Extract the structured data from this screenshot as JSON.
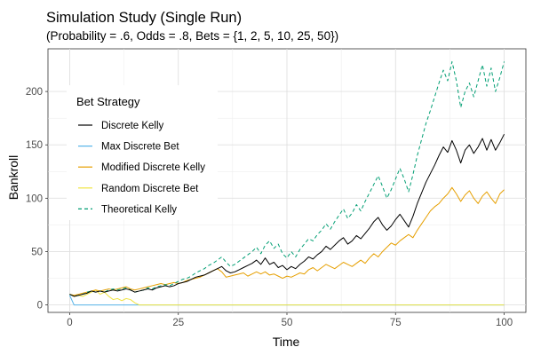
{
  "chart_data": {
    "type": "line",
    "title": "Simulation Study (Single Run)",
    "subtitle": "(Probability = .6, Odds = .8, Bets = {1, 2, 5, 10, 25, 50})",
    "xlabel": "Time",
    "ylabel": "Bankroll",
    "xlim": [
      -5,
      105
    ],
    "ylim": [
      -7,
      240
    ],
    "x_ticks": [
      0,
      25,
      50,
      75,
      100
    ],
    "y_ticks": [
      0,
      50,
      100,
      150,
      200
    ],
    "grid": true,
    "legend": {
      "title": "Bet Strategy",
      "position": "inside-top-left"
    },
    "series": [
      {
        "name": "Discrete Kelly",
        "color": "#000000",
        "dash": "solid",
        "points": [
          [
            0,
            10
          ],
          [
            1,
            8
          ],
          [
            2,
            9
          ],
          [
            3,
            10
          ],
          [
            4,
            11
          ],
          [
            5,
            13
          ],
          [
            6,
            12
          ],
          [
            7,
            13
          ],
          [
            8,
            12
          ],
          [
            9,
            13
          ],
          [
            10,
            14
          ],
          [
            11,
            13
          ],
          [
            12,
            14
          ],
          [
            13,
            15
          ],
          [
            14,
            14
          ],
          [
            15,
            12
          ],
          [
            16,
            13
          ],
          [
            17,
            14
          ],
          [
            18,
            15
          ],
          [
            19,
            14
          ],
          [
            20,
            16
          ],
          [
            21,
            17
          ],
          [
            22,
            18
          ],
          [
            23,
            17
          ],
          [
            24,
            18
          ],
          [
            25,
            20
          ],
          [
            26,
            21
          ],
          [
            27,
            22
          ],
          [
            28,
            24
          ],
          [
            29,
            26
          ],
          [
            30,
            27
          ],
          [
            31,
            28
          ],
          [
            32,
            30
          ],
          [
            33,
            32
          ],
          [
            34,
            34
          ],
          [
            35,
            36
          ],
          [
            36,
            32
          ],
          [
            37,
            30
          ],
          [
            38,
            31
          ],
          [
            39,
            33
          ],
          [
            40,
            35
          ],
          [
            41,
            37
          ],
          [
            42,
            39
          ],
          [
            43,
            42
          ],
          [
            44,
            38
          ],
          [
            45,
            44
          ],
          [
            46,
            38
          ],
          [
            47,
            40
          ],
          [
            48,
            35
          ],
          [
            49,
            37
          ],
          [
            50,
            33
          ],
          [
            51,
            36
          ],
          [
            52,
            34
          ],
          [
            53,
            38
          ],
          [
            54,
            41
          ],
          [
            55,
            45
          ],
          [
            56,
            43
          ],
          [
            57,
            47
          ],
          [
            58,
            50
          ],
          [
            59,
            55
          ],
          [
            60,
            52
          ],
          [
            61,
            56
          ],
          [
            62,
            60
          ],
          [
            63,
            63
          ],
          [
            64,
            57
          ],
          [
            65,
            60
          ],
          [
            66,
            65
          ],
          [
            67,
            62
          ],
          [
            68,
            67
          ],
          [
            69,
            72
          ],
          [
            70,
            78
          ],
          [
            71,
            82
          ],
          [
            72,
            75
          ],
          [
            73,
            70
          ],
          [
            74,
            74
          ],
          [
            75,
            80
          ],
          [
            76,
            85
          ],
          [
            77,
            79
          ],
          [
            78,
            73
          ],
          [
            79,
            83
          ],
          [
            80,
            95
          ],
          [
            81,
            105
          ],
          [
            82,
            115
          ],
          [
            83,
            123
          ],
          [
            84,
            131
          ],
          [
            85,
            140
          ],
          [
            86,
            148
          ],
          [
            87,
            143
          ],
          [
            88,
            154
          ],
          [
            89,
            145
          ],
          [
            90,
            133
          ],
          [
            91,
            145
          ],
          [
            92,
            150
          ],
          [
            93,
            142
          ],
          [
            94,
            148
          ],
          [
            95,
            156
          ],
          [
            96,
            145
          ],
          [
            97,
            155
          ],
          [
            98,
            145
          ],
          [
            99,
            152
          ],
          [
            100,
            160
          ]
        ]
      },
      {
        "name": "Max Discrete Bet",
        "color": "#56B4E9",
        "dash": "solid",
        "points": [
          [
            0,
            9
          ],
          [
            1,
            0
          ],
          [
            100,
            0
          ]
        ]
      },
      {
        "name": "Modified Discrete Kelly",
        "color": "#E69F00",
        "dash": "solid",
        "points": [
          [
            0,
            10
          ],
          [
            1,
            9
          ],
          [
            2,
            10
          ],
          [
            3,
            11
          ],
          [
            4,
            12
          ],
          [
            5,
            13
          ],
          [
            6,
            14
          ],
          [
            7,
            13
          ],
          [
            8,
            14
          ],
          [
            9,
            15
          ],
          [
            10,
            14
          ],
          [
            11,
            15
          ],
          [
            12,
            16
          ],
          [
            13,
            17
          ],
          [
            14,
            15
          ],
          [
            15,
            14
          ],
          [
            16,
            15
          ],
          [
            17,
            16
          ],
          [
            18,
            17
          ],
          [
            19,
            18
          ],
          [
            20,
            19
          ],
          [
            21,
            20
          ],
          [
            22,
            19
          ],
          [
            23,
            20
          ],
          [
            24,
            21
          ],
          [
            25,
            20
          ],
          [
            26,
            21
          ],
          [
            27,
            23
          ],
          [
            28,
            24
          ],
          [
            29,
            25
          ],
          [
            30,
            26
          ],
          [
            31,
            28
          ],
          [
            32,
            30
          ],
          [
            33,
            32
          ],
          [
            34,
            34
          ],
          [
            35,
            31
          ],
          [
            36,
            26
          ],
          [
            37,
            27
          ],
          [
            38,
            28
          ],
          [
            39,
            29
          ],
          [
            40,
            30
          ],
          [
            41,
            27
          ],
          [
            42,
            29
          ],
          [
            43,
            31
          ],
          [
            44,
            29
          ],
          [
            45,
            31
          ],
          [
            46,
            28
          ],
          [
            47,
            29
          ],
          [
            48,
            27
          ],
          [
            49,
            25
          ],
          [
            50,
            27
          ],
          [
            51,
            26
          ],
          [
            52,
            28
          ],
          [
            53,
            30
          ],
          [
            54,
            29
          ],
          [
            55,
            33
          ],
          [
            56,
            35
          ],
          [
            57,
            32
          ],
          [
            58,
            35
          ],
          [
            59,
            38
          ],
          [
            60,
            36
          ],
          [
            61,
            34
          ],
          [
            62,
            37
          ],
          [
            63,
            40
          ],
          [
            64,
            38
          ],
          [
            65,
            36
          ],
          [
            66,
            39
          ],
          [
            67,
            42
          ],
          [
            68,
            39
          ],
          [
            69,
            44
          ],
          [
            70,
            48
          ],
          [
            71,
            45
          ],
          [
            72,
            50
          ],
          [
            73,
            54
          ],
          [
            74,
            58
          ],
          [
            75,
            56
          ],
          [
            76,
            60
          ],
          [
            77,
            63
          ],
          [
            78,
            66
          ],
          [
            79,
            63
          ],
          [
            80,
            70
          ],
          [
            81,
            76
          ],
          [
            82,
            82
          ],
          [
            83,
            88
          ],
          [
            84,
            92
          ],
          [
            85,
            95
          ],
          [
            86,
            100
          ],
          [
            87,
            104
          ],
          [
            88,
            110
          ],
          [
            89,
            104
          ],
          [
            90,
            97
          ],
          [
            91,
            103
          ],
          [
            92,
            107
          ],
          [
            93,
            100
          ],
          [
            94,
            95
          ],
          [
            95,
            102
          ],
          [
            96,
            106
          ],
          [
            97,
            100
          ],
          [
            98,
            95
          ],
          [
            99,
            104
          ],
          [
            100,
            108
          ]
        ]
      },
      {
        "name": "Random Discrete Bet",
        "color": "#F0E442",
        "dash": "solid",
        "points": [
          [
            0,
            10
          ],
          [
            1,
            8
          ],
          [
            2,
            9
          ],
          [
            3,
            8
          ],
          [
            4,
            10
          ],
          [
            5,
            12
          ],
          [
            6,
            14
          ],
          [
            7,
            10
          ],
          [
            8,
            12
          ],
          [
            9,
            8
          ],
          [
            10,
            5
          ],
          [
            11,
            6
          ],
          [
            12,
            4
          ],
          [
            13,
            6
          ],
          [
            14,
            5
          ],
          [
            15,
            2
          ],
          [
            16,
            0
          ],
          [
            100,
            0
          ]
        ]
      },
      {
        "name": "Theoretical Kelly",
        "color": "#009E73",
        "dash": "dashed",
        "points": [
          [
            0,
            10
          ],
          [
            1,
            8
          ],
          [
            2,
            9
          ],
          [
            3,
            10
          ],
          [
            4,
            12
          ],
          [
            5,
            13
          ],
          [
            6,
            12
          ],
          [
            7,
            13
          ],
          [
            8,
            12
          ],
          [
            9,
            14
          ],
          [
            10,
            15
          ],
          [
            11,
            14
          ],
          [
            12,
            15
          ],
          [
            13,
            16
          ],
          [
            14,
            14
          ],
          [
            15,
            12
          ],
          [
            16,
            13
          ],
          [
            17,
            14
          ],
          [
            18,
            16
          ],
          [
            19,
            15
          ],
          [
            20,
            17
          ],
          [
            21,
            18
          ],
          [
            22,
            19
          ],
          [
            23,
            18
          ],
          [
            24,
            20
          ],
          [
            25,
            22
          ],
          [
            26,
            24
          ],
          [
            27,
            25
          ],
          [
            28,
            27
          ],
          [
            29,
            30
          ],
          [
            30,
            32
          ],
          [
            31,
            34
          ],
          [
            32,
            37
          ],
          [
            33,
            39
          ],
          [
            34,
            42
          ],
          [
            35,
            45
          ],
          [
            36,
            40
          ],
          [
            37,
            36
          ],
          [
            38,
            38
          ],
          [
            39,
            41
          ],
          [
            40,
            44
          ],
          [
            41,
            47
          ],
          [
            42,
            50
          ],
          [
            43,
            54
          ],
          [
            44,
            48
          ],
          [
            45,
            56
          ],
          [
            46,
            60
          ],
          [
            47,
            53
          ],
          [
            48,
            57
          ],
          [
            49,
            48
          ],
          [
            50,
            44
          ],
          [
            51,
            50
          ],
          [
            52,
            45
          ],
          [
            53,
            52
          ],
          [
            54,
            57
          ],
          [
            55,
            62
          ],
          [
            56,
            60
          ],
          [
            57,
            66
          ],
          [
            58,
            70
          ],
          [
            59,
            76
          ],
          [
            60,
            71
          ],
          [
            61,
            78
          ],
          [
            62,
            84
          ],
          [
            63,
            90
          ],
          [
            64,
            81
          ],
          [
            65,
            86
          ],
          [
            66,
            94
          ],
          [
            67,
            88
          ],
          [
            68,
            97
          ],
          [
            69,
            105
          ],
          [
            70,
            113
          ],
          [
            71,
            121
          ],
          [
            72,
            111
          ],
          [
            73,
            100
          ],
          [
            74,
            108
          ],
          [
            75,
            118
          ],
          [
            76,
            128
          ],
          [
            77,
            118
          ],
          [
            78,
            106
          ],
          [
            79,
            122
          ],
          [
            80,
            140
          ],
          [
            81,
            155
          ],
          [
            82,
            170
          ],
          [
            83,
            182
          ],
          [
            84,
            195
          ],
          [
            85,
            208
          ],
          [
            86,
            220
          ],
          [
            87,
            210
          ],
          [
            88,
            228
          ],
          [
            89,
            210
          ],
          [
            90,
            185
          ],
          [
            91,
            200
          ],
          [
            92,
            208
          ],
          [
            93,
            195
          ],
          [
            94,
            210
          ],
          [
            95,
            225
          ],
          [
            96,
            205
          ],
          [
            97,
            222
          ],
          [
            98,
            200
          ],
          [
            99,
            213
          ],
          [
            100,
            228
          ]
        ]
      }
    ]
  }
}
